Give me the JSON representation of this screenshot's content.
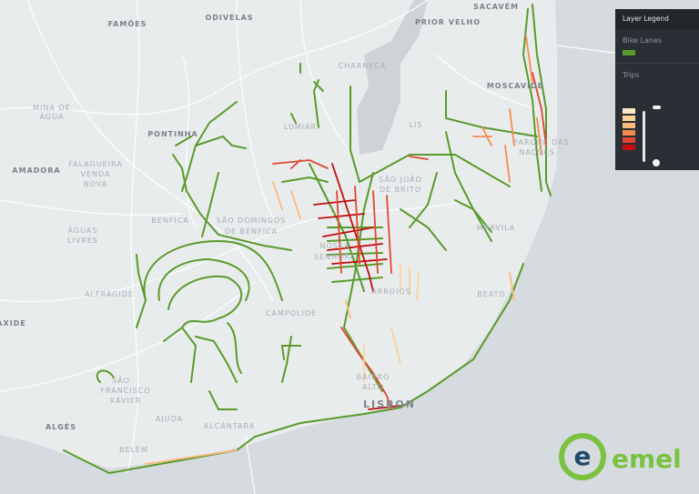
{
  "legend": {
    "title": "Layer Legend",
    "bike_lanes_label": "Bike Lanes",
    "bike_lanes_color": "#5a9a2b",
    "trips_label": "Trips",
    "trips_colors": [
      "#fde9c8",
      "#fcd29a",
      "#fbb97a",
      "#f58a4c",
      "#e0472e",
      "#c00d0d"
    ],
    "slider_min_icon": "minus-handle",
    "slider_max_icon": "plus-handle"
  },
  "map": {
    "land_color": "#e9eced",
    "water_color": "#d6dbdf",
    "labels": {
      "famoes": "FAMÕES",
      "odivelas": "ODIVELAS",
      "prior_velho": "PRIOR VELHO",
      "sacavem": "SACAVÉM",
      "charneca": "CHARNECA",
      "moscavide": "MOSCAVIDE",
      "mina": "MINA DE",
      "agua": "ÁGUA",
      "pontinha": "PONTINHA",
      "lumiar": "LUMIAR",
      "amadora": "AMADORA",
      "falagueira": "FALAGUEIRA",
      "venda": "VENDA",
      "nova": "NOVA",
      "benfica": "BENFICA",
      "sao_domingos": "SÃO DOMINGOS",
      "de_benfica": "DE BENFICA",
      "aguas": "ÁGUAS",
      "livres": "LIVRES",
      "alfragide": "ALFRAGIDE",
      "carnaxide": "CARNAXIDE",
      "campolide": "CAMPOLIDE",
      "bairro": "BAIRRO",
      "alto": "ALTO",
      "lisbon": "LISBON",
      "alges": "ALGÉS",
      "ajuda": "AJUDA",
      "alcantara": "ALCÂNTARA",
      "belem": "BELÉM",
      "sao": "SÃO",
      "francisco": "FRANCISCO",
      "xavier": "XAVIER",
      "nossa": "NOSSA",
      "senhora": "SENHORA",
      "lis": "LIS",
      "parque": "PARQUE DAS",
      "nacoes": "NAÇÕES",
      "marvila": "MARVILA",
      "beato": "BEATO",
      "arroios": "ARROIOS",
      "alvalade": "SÃO JOÃO",
      "alvalade2": "DE BRITO"
    }
  },
  "logo": {
    "text": "emel",
    "ring_color": "#7cc242",
    "e_color": "#1f4a6b"
  }
}
